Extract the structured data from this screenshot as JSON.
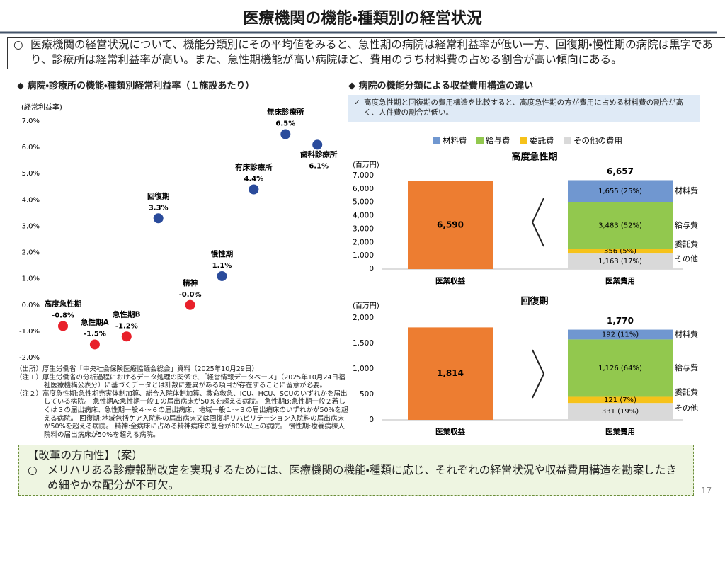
{
  "header": {
    "title": "医療機関の機能・種類別の経営状況"
  },
  "summary": {
    "bullet": "○",
    "text": "医療機関の経営状況について、機能分類別にその平均値をみると、急性期の病院は経常利益率が低い一方、回復期・慢性期の病院は黒字であり、診療所は経常利益率が高い。また、急性期機能が高い病院ほど、費用のうち材料費の占める割合が高い傾向にある。"
  },
  "left_section": {
    "heading": "◆ 病院・診療所の機能・種類別経常利益率（１施設あたり）"
  },
  "notes": [
    "（出所）厚生労働省「中央社会保険医療協議会総会」資料（2025年10月29日）",
    "（注１）厚生労働省の分析過程におけるデータ処理の関係で、「経営情報データベース」（2025年10月24日福祉医療機構公表分）に基づくデータとは計数に差異がある項目が存在することに留意が必要。",
    "（注２）高度急性期:急性期充実体制加算、総合入院体制加算、救命救急、ICU、HCU、SCUのいずれかを届出している病院。 急性期A:急性期一般１の届出病床が50%を超える病院。 急性期B:急性期一般２若しくは３の届出病床、急性期一般４～６の届出病床、地域一般１～３の届出病床のいずれかが50%を超える病院。 回復期:地域包括ケア入院料の届出病床又は回復期リハビリテーション入院料の届出病床が50%を超える病院。 精神:全病床に占める精神病床の割合が80%以上の病院。 慢性期:療養病棟入院料の届出病床が50%を超える病院。"
  ],
  "right_section": {
    "heading": "◆ 病院の機能分類による収益費用構造の違い",
    "note_mark": "✓",
    "note": "高度急性期と回復期の費用構造を比較すると、高度急性期の方が費用に占める材料費の割合が高く、人件費の割合が低い。"
  },
  "chart_data": [
    {
      "type": "scatter",
      "y_label": "(経常利益率)",
      "categories": [
        "高度急性期",
        "急性期A",
        "急性期B",
        "回復期",
        "精神",
        "慢性期",
        "有床診療所",
        "無床診療所",
        "歯科診療所"
      ],
      "values": [
        -0.8,
        -1.5,
        -1.2,
        3.3,
        0,
        1.1,
        4.4,
        6.5,
        6.1
      ],
      "value_labels": [
        "-0.8%",
        "-1.5%",
        "-1.2%",
        "3.3%",
        "-0.0%",
        "1.1%",
        "4.4%",
        "6.5%",
        "6.1%"
      ],
      "colors": [
        "#e8202a",
        "#e8202a",
        "#e8202a",
        "#2a4b9b",
        "#e8202a",
        "#2a4b9b",
        "#2a4b9b",
        "#2a4b9b",
        "#2a4b9b"
      ],
      "ylim": [
        -2,
        7
      ],
      "yticks": [
        {
          "value": -2,
          "label": "-2.0%"
        },
        {
          "value": -1,
          "label": "-1.0%"
        },
        {
          "value": 0,
          "label": "0.0%"
        },
        {
          "value": 1,
          "label": "1.0%"
        },
        {
          "value": 2,
          "label": "2.0%"
        },
        {
          "value": 3,
          "label": "3.0%"
        },
        {
          "value": 4,
          "label": "4.0%"
        },
        {
          "value": 5,
          "label": "5.0%"
        },
        {
          "value": 6,
          "label": "6.0%"
        },
        {
          "value": 7,
          "label": "7.0%"
        }
      ],
      "grid": false
    },
    {
      "type": "stacked_bar",
      "title": "高度急性期",
      "y_label": "(百万円)",
      "categories": [
        "医業収益",
        "医業費用"
      ],
      "revenue": 6590,
      "revenue_label": "6,590",
      "revenue_color": "#ed7d31",
      "total": 6657,
      "total_label": "6,657",
      "series": [
        {
          "name": "材料費",
          "color": "#7097d0",
          "values": [
            null,
            1655
          ],
          "value_labels": [
            null,
            "1,655 (25%)"
          ]
        },
        {
          "name": "給与費",
          "color": "#92c84e",
          "values": [
            null,
            3483
          ],
          "value_labels": [
            null,
            "3,483 (52%)"
          ]
        },
        {
          "name": "委託費",
          "color": "#f6c21a",
          "values": [
            null,
            356
          ],
          "value_labels": [
            null,
            "356 (5%)"
          ]
        },
        {
          "name": "その他の費用",
          "color": "#d9d9d9",
          "values": [
            null,
            1163
          ],
          "value_labels": [
            null,
            "1,163 (17%)"
          ]
        }
      ],
      "segment_labels": [
        "材料費",
        "給与費",
        "委託費",
        "その他"
      ],
      "ylim": [
        0,
        7000
      ],
      "yticks": [
        0,
        {
          "value": 1000,
          "label": "1,000"
        },
        {
          "value": 2000,
          "label": "2,000"
        },
        {
          "value": 3000,
          "label": "3,000"
        },
        {
          "value": 4000,
          "label": "4,000"
        },
        {
          "value": 5000,
          "label": "5,000"
        },
        {
          "value": 6000,
          "label": "6,000"
        },
        {
          "value": 7000,
          "label": "7,000"
        }
      ],
      "grid": false,
      "legend": "top"
    },
    {
      "type": "stacked_bar",
      "title": "回復期",
      "y_label": "(百万円)",
      "categories": [
        "医業収益",
        "医業費用"
      ],
      "revenue": 1814,
      "revenue_label": "1,814",
      "revenue_color": "#ed7d31",
      "total": 1770,
      "total_label": "1,770",
      "series": [
        {
          "name": "材料費",
          "color": "#7097d0",
          "values": [
            null,
            192
          ],
          "value_labels": [
            null,
            "192 (11%)"
          ]
        },
        {
          "name": "給与費",
          "color": "#92c84e",
          "values": [
            null,
            1126
          ],
          "value_labels": [
            null,
            "1,126 (64%)"
          ]
        },
        {
          "name": "委託費",
          "color": "#f6c21a",
          "values": [
            null,
            121
          ],
          "value_labels": [
            null,
            "121 (7%)"
          ]
        },
        {
          "name": "その他の費用",
          "color": "#d9d9d9",
          "values": [
            null,
            331
          ],
          "value_labels": [
            null,
            "331 (19%)"
          ]
        }
      ],
      "segment_labels": [
        "材料費",
        "給与費",
        "委託費",
        "その他"
      ],
      "ylim": [
        0,
        2000
      ],
      "yticks": [
        0,
        500,
        {
          "value": 1000,
          "label": "1,000"
        },
        {
          "value": 1500,
          "label": "1,500"
        },
        {
          "value": 2000,
          "label": "2,000"
        }
      ],
      "grid": false
    }
  ],
  "reform": {
    "heading": "【改革の方向性】（案）",
    "bullet": "○",
    "text": "メリハリある診療報酬改定を実現するためには、医療機関の機能・種類に応じ、それぞれの経営状況や収益費用構造を勘案したきめ細やかな配分が不可欠。"
  },
  "page_number": "17"
}
